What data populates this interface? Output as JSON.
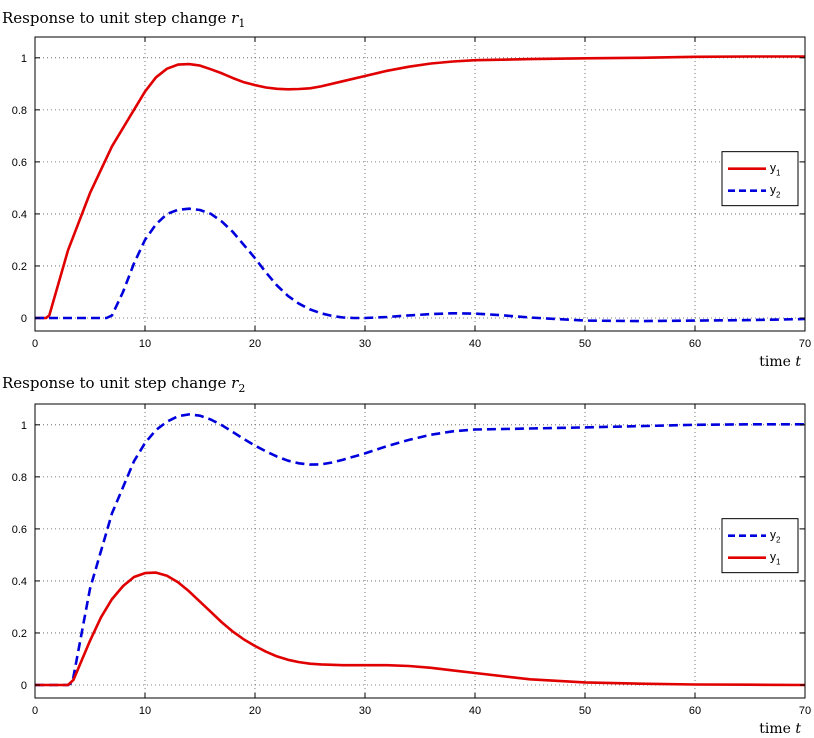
{
  "chart_data": [
    {
      "type": "line",
      "title_prefix": "Response to unit step change ",
      "title_var": "r",
      "title_sub": "1",
      "xlabel_prefix": "time ",
      "xlabel_var": "t",
      "xlim": [
        0,
        70
      ],
      "ylim": [
        -0.05,
        1.08
      ],
      "xticks": [
        0,
        10,
        20,
        30,
        40,
        50,
        60,
        70
      ],
      "yticks": [
        0,
        0.2,
        0.4,
        0.6,
        0.8,
        1
      ],
      "grid": true,
      "legend_position": "right",
      "series": [
        {
          "name": "y",
          "sub": "1",
          "color": "#e00000",
          "style": "solid",
          "x": [
            0,
            1,
            1.3,
            3,
            5,
            7,
            9,
            10,
            11,
            12,
            13,
            14,
            15,
            16,
            17,
            18,
            19,
            20,
            21,
            22,
            23,
            24,
            25,
            26,
            28,
            30,
            32,
            34,
            36,
            38,
            40,
            45,
            50,
            55,
            60,
            65,
            70
          ],
          "y": [
            0,
            0,
            0.01,
            0.26,
            0.48,
            0.66,
            0.8,
            0.87,
            0.925,
            0.958,
            0.974,
            0.976,
            0.97,
            0.956,
            0.94,
            0.922,
            0.906,
            0.895,
            0.886,
            0.881,
            0.879,
            0.88,
            0.883,
            0.89,
            0.91,
            0.93,
            0.95,
            0.966,
            0.978,
            0.986,
            0.991,
            0.995,
            0.998,
            1.0,
            1.004,
            1.005,
            1.005
          ]
        },
        {
          "name": "y",
          "sub": "2",
          "color": "#0000dd",
          "style": "dashed",
          "x": [
            0,
            6.5,
            7,
            8,
            9,
            10,
            11,
            12,
            13,
            14,
            15,
            16,
            17,
            18,
            19,
            20,
            21,
            22,
            23,
            24,
            25,
            26,
            27,
            28,
            29,
            30,
            32,
            34,
            36,
            38,
            40,
            42,
            45,
            50,
            55,
            60,
            65,
            70
          ],
          "y": [
            0,
            0,
            0.01,
            0.1,
            0.21,
            0.3,
            0.36,
            0.4,
            0.416,
            0.42,
            0.415,
            0.4,
            0.37,
            0.33,
            0.28,
            0.23,
            0.175,
            0.125,
            0.085,
            0.055,
            0.033,
            0.018,
            0.008,
            0.002,
            0.0,
            0.0,
            0.004,
            0.01,
            0.015,
            0.018,
            0.017,
            0.012,
            0.002,
            -0.01,
            -0.012,
            -0.01,
            -0.008,
            -0.004
          ]
        }
      ]
    },
    {
      "type": "line",
      "title_prefix": "Response to unit step change ",
      "title_var": "r",
      "title_sub": "2",
      "xlabel_prefix": "time ",
      "xlabel_var": "t",
      "xlim": [
        0,
        70
      ],
      "ylim": [
        -0.05,
        1.08
      ],
      "xticks": [
        0,
        10,
        20,
        30,
        40,
        50,
        60,
        70
      ],
      "yticks": [
        0,
        0.2,
        0.4,
        0.6,
        0.8,
        1
      ],
      "grid": true,
      "legend_position": "right",
      "series": [
        {
          "name": "y",
          "sub": "2",
          "color": "#0000dd",
          "style": "dashed",
          "x": [
            0,
            3,
            3.4,
            5,
            7,
            9,
            10,
            11,
            12,
            13,
            14,
            15,
            16,
            17,
            18,
            19,
            20,
            21,
            22,
            23,
            24,
            25,
            26,
            27,
            28,
            30,
            32,
            34,
            36,
            38,
            40,
            45,
            50,
            55,
            60,
            65,
            70
          ],
          "y": [
            0,
            0,
            0.01,
            0.37,
            0.66,
            0.86,
            0.93,
            0.98,
            1.012,
            1.033,
            1.04,
            1.035,
            1.02,
            0.998,
            0.972,
            0.945,
            0.92,
            0.898,
            0.878,
            0.862,
            0.852,
            0.847,
            0.848,
            0.855,
            0.866,
            0.89,
            0.918,
            0.942,
            0.962,
            0.975,
            0.982,
            0.986,
            0.99,
            0.995,
            1.0,
            1.002,
            1.002
          ]
        },
        {
          "name": "y",
          "sub": "1",
          "color": "#e00000",
          "style": "solid",
          "x": [
            0,
            3,
            3.5,
            5,
            6,
            7,
            8,
            9,
            10,
            11,
            12,
            13,
            14,
            15,
            16,
            17,
            18,
            19,
            20,
            21,
            22,
            23,
            24,
            25,
            26,
            28,
            30,
            32,
            34,
            36,
            38,
            40,
            45,
            50,
            55,
            60,
            65,
            70
          ],
          "y": [
            0,
            0,
            0.02,
            0.17,
            0.26,
            0.33,
            0.38,
            0.415,
            0.43,
            0.432,
            0.42,
            0.395,
            0.36,
            0.32,
            0.28,
            0.24,
            0.205,
            0.175,
            0.15,
            0.128,
            0.11,
            0.097,
            0.088,
            0.082,
            0.079,
            0.076,
            0.076,
            0.076,
            0.073,
            0.066,
            0.056,
            0.046,
            0.022,
            0.01,
            0.005,
            0.002,
            0.001,
            0.0
          ]
        }
      ]
    }
  ]
}
